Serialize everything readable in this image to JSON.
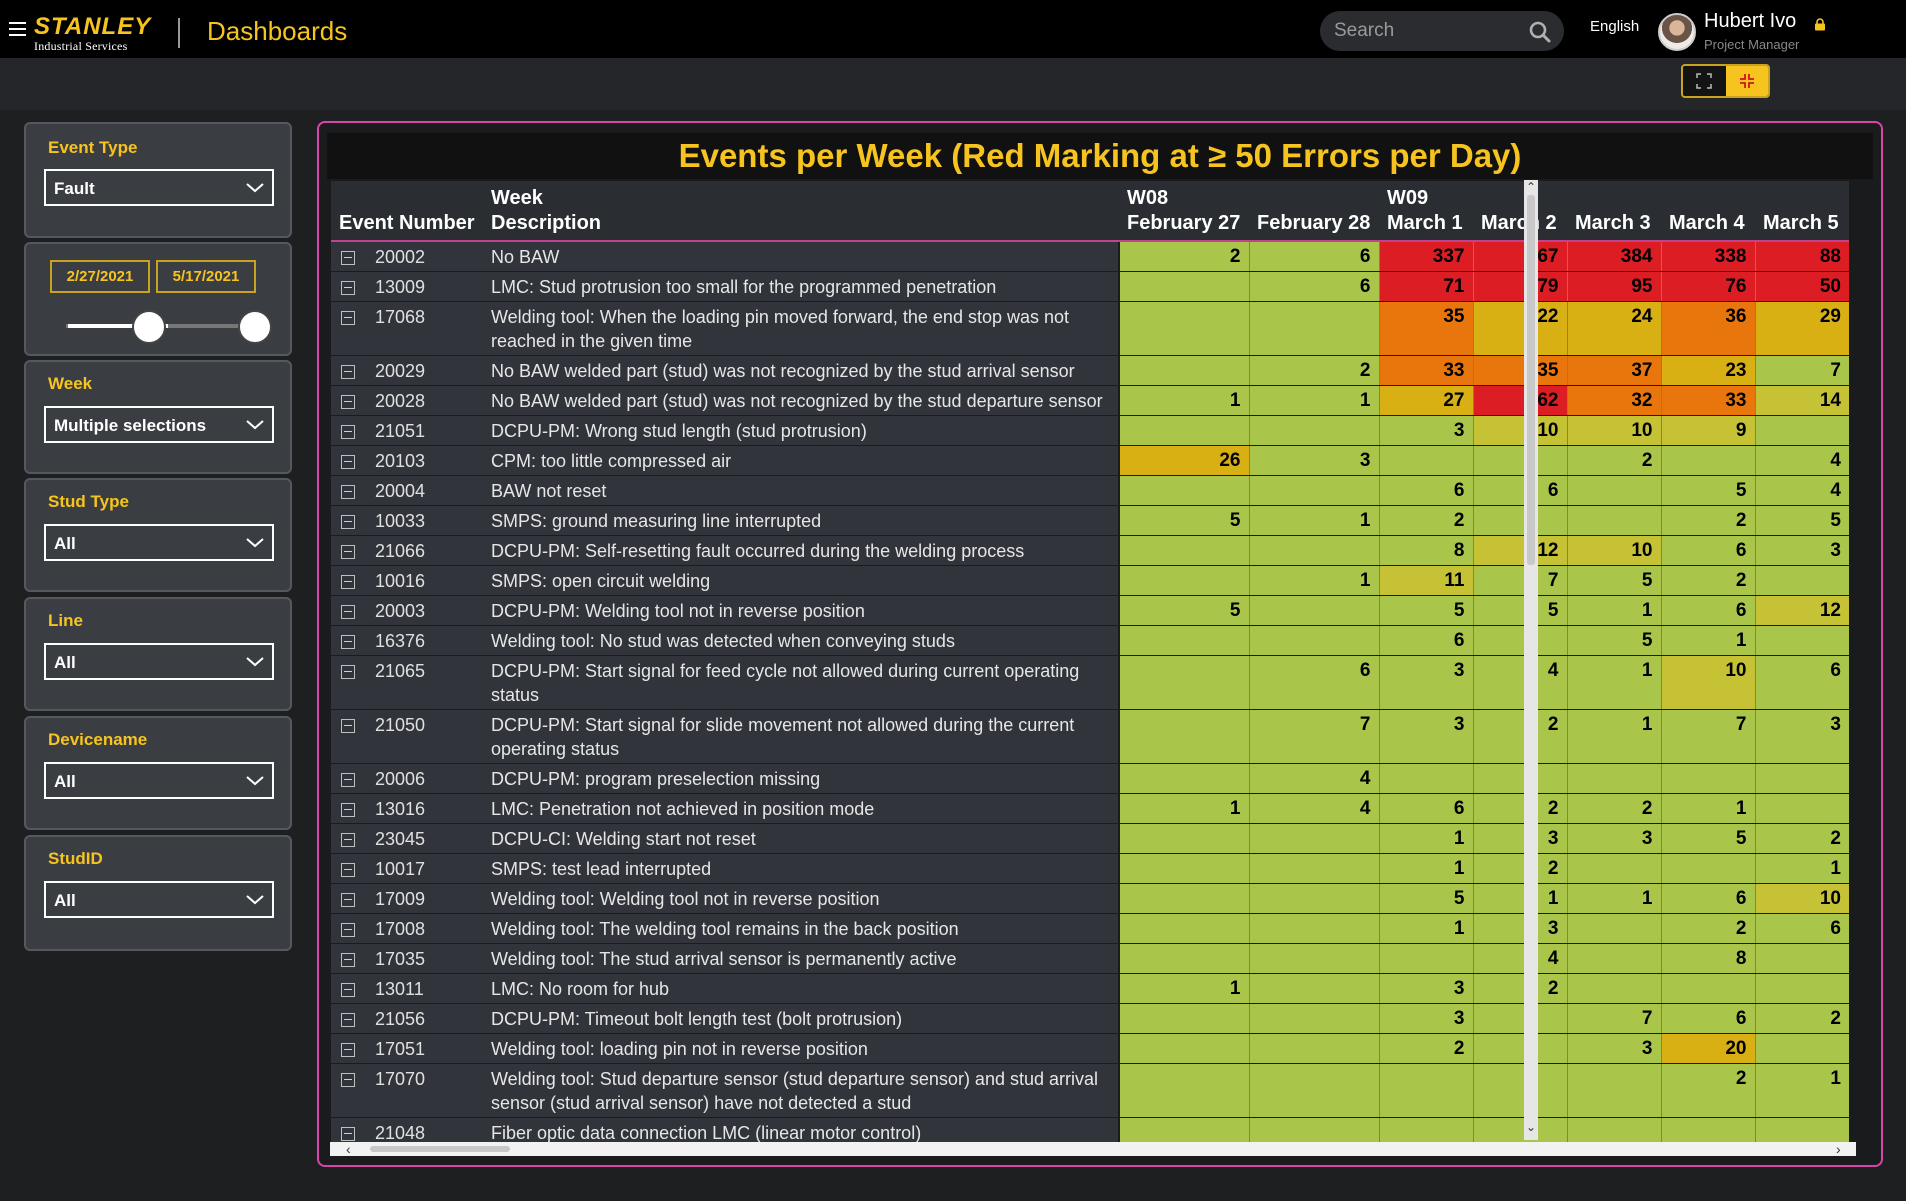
{
  "header": {
    "brand": "STANLEY",
    "brand_sub": "Industrial Services",
    "app_title": "Dashboards",
    "search_placeholder": "Search",
    "language": "English",
    "user_name": "Hubert Ivo",
    "user_role": "Project Manager"
  },
  "filters": {
    "event_type": {
      "label": "Event Type",
      "value": "Fault"
    },
    "date_range": {
      "start": "2/27/2021",
      "end": "5/17/2021"
    },
    "week": {
      "label": "Week",
      "value": "Multiple selections"
    },
    "stud_type": {
      "label": "Stud Type",
      "value": "All"
    },
    "line": {
      "label": "Line",
      "value": "All"
    },
    "devicename": {
      "label": "Devicename",
      "value": "All"
    },
    "studid": {
      "label": "StudID",
      "value": "All"
    }
  },
  "table": {
    "title": "Events per Week (Red Marking at ≥ 50 Errors per Day)",
    "header_week_label": "Week",
    "header_event_number": "Event Number",
    "header_description": "Description",
    "weeks": [
      {
        "label": "W08",
        "span": 2
      },
      {
        "label": "W09",
        "span": 5
      }
    ],
    "days": [
      "February 27",
      "February 28",
      "March 1",
      "March 2",
      "March 3",
      "March 4",
      "March 5"
    ],
    "rows": [
      {
        "num": "20002",
        "desc": "No BAW",
        "vals": [
          "2",
          "6",
          "337",
          "267",
          "384",
          "338",
          "88"
        ]
      },
      {
        "num": "13009",
        "desc": "LMC: Stud protrusion too small for the programmed penetration",
        "vals": [
          "",
          "6",
          "71",
          "79",
          "95",
          "76",
          "50"
        ]
      },
      {
        "num": "17068",
        "desc": "Welding tool: When the loading pin moved forward, the end stop was not reached in the given time",
        "vals": [
          "",
          "",
          "35",
          "22",
          "24",
          "36",
          "29"
        ]
      },
      {
        "num": "20029",
        "desc": "No BAW welded part (stud) was not recognized by the stud arrival sensor",
        "vals": [
          "",
          "2",
          "33",
          "35",
          "37",
          "23",
          "7"
        ]
      },
      {
        "num": "20028",
        "desc": "No BAW welded part (stud) was not recognized by the stud departure sensor",
        "vals": [
          "1",
          "1",
          "27",
          "62",
          "32",
          "33",
          "14"
        ]
      },
      {
        "num": "21051",
        "desc": "DCPU-PM: Wrong stud length (stud protrusion)",
        "vals": [
          "",
          "",
          "3",
          "10",
          "10",
          "9",
          ""
        ]
      },
      {
        "num": "20103",
        "desc": "CPM: too little compressed air",
        "vals": [
          "26",
          "3",
          "",
          "",
          "2",
          "",
          "4"
        ]
      },
      {
        "num": "20004",
        "desc": "BAW not reset",
        "vals": [
          "",
          "",
          "6",
          "6",
          "",
          "5",
          "4"
        ]
      },
      {
        "num": "10033",
        "desc": "SMPS: ground measuring line interrupted",
        "vals": [
          "5",
          "1",
          "2",
          "",
          "",
          "2",
          "5"
        ]
      },
      {
        "num": "21066",
        "desc": "DCPU-PM: Self-resetting fault occurred during the welding process",
        "vals": [
          "",
          "",
          "8",
          "12",
          "10",
          "6",
          "3"
        ]
      },
      {
        "num": "10016",
        "desc": "SMPS: open circuit welding",
        "vals": [
          "",
          "1",
          "11",
          "7",
          "5",
          "2",
          ""
        ]
      },
      {
        "num": "20003",
        "desc": "DCPU-PM: Welding tool not in reverse position",
        "vals": [
          "5",
          "",
          "5",
          "5",
          "1",
          "6",
          "12"
        ]
      },
      {
        "num": "16376",
        "desc": "Welding tool: No stud was detected when conveying studs",
        "vals": [
          "",
          "",
          "6",
          "",
          "5",
          "1",
          ""
        ]
      },
      {
        "num": "21065",
        "desc": "DCPU-PM: Start signal for feed cycle not allowed during current operating status",
        "vals": [
          "",
          "6",
          "3",
          "4",
          "1",
          "10",
          "6"
        ]
      },
      {
        "num": "21050",
        "desc": "DCPU-PM: Start signal for slide movement not allowed during the current operating status",
        "vals": [
          "",
          "7",
          "3",
          "2",
          "1",
          "7",
          "3"
        ]
      },
      {
        "num": "20006",
        "desc": "DCPU-PM: program preselection missing",
        "vals": [
          "",
          "4",
          "",
          "",
          "",
          "",
          ""
        ]
      },
      {
        "num": "13016",
        "desc": "LMC: Penetration not achieved in position mode",
        "vals": [
          "1",
          "4",
          "6",
          "2",
          "2",
          "1",
          ""
        ]
      },
      {
        "num": "23045",
        "desc": "DCPU-CI: Welding start not reset",
        "vals": [
          "",
          "",
          "1",
          "3",
          "3",
          "5",
          "2"
        ]
      },
      {
        "num": "10017",
        "desc": "SMPS: test lead interrupted",
        "vals": [
          "",
          "",
          "1",
          "2",
          "",
          "",
          "1"
        ]
      },
      {
        "num": "17009",
        "desc": "Welding tool: Welding tool not in reverse position",
        "vals": [
          "",
          "",
          "5",
          "1",
          "1",
          "6",
          "10"
        ]
      },
      {
        "num": "17008",
        "desc": "Welding tool: The welding tool remains in the back position",
        "vals": [
          "",
          "",
          "1",
          "3",
          "",
          "2",
          "6"
        ]
      },
      {
        "num": "17035",
        "desc": "Welding tool: The stud arrival sensor is permanently active",
        "vals": [
          "",
          "",
          "",
          "4",
          "",
          "8",
          ""
        ]
      },
      {
        "num": "13011",
        "desc": "LMC: No room for hub",
        "vals": [
          "1",
          "",
          "3",
          "2",
          "",
          "",
          ""
        ]
      },
      {
        "num": "21056",
        "desc": "DCPU-PM: Timeout bolt length test (bolt protrusion)",
        "vals": [
          "",
          "",
          "3",
          "",
          "7",
          "6",
          "2"
        ]
      },
      {
        "num": "17051",
        "desc": "Welding tool: loading pin not in reverse position",
        "vals": [
          "",
          "",
          "2",
          "",
          "3",
          "20",
          ""
        ]
      },
      {
        "num": "17070",
        "desc": "Welding tool: Stud departure sensor (stud departure sensor) and stud arrival sensor (stud arrival sensor) have not detected a stud",
        "vals": [
          "",
          "",
          "",
          "",
          "",
          "2",
          "1"
        ]
      },
      {
        "num": "21048",
        "desc": "Fiber optic data connection LMC (linear motor control)",
        "vals": [
          "",
          "",
          "",
          "",
          "",
          "",
          ""
        ]
      }
    ]
  },
  "colors": {
    "accent": "#f7c41f",
    "panel_border": "#d845a8",
    "heat_low": "#a9c64b",
    "heat_mid": "#d9b014",
    "heat_high": "#e8760d",
    "heat_max": "#dc1d23"
  },
  "icons": {
    "menu": "hamburger-icon",
    "search": "search-icon",
    "lock": "lock-icon",
    "dropdown": "chevron-down-icon",
    "expander": "collapse-icon"
  }
}
